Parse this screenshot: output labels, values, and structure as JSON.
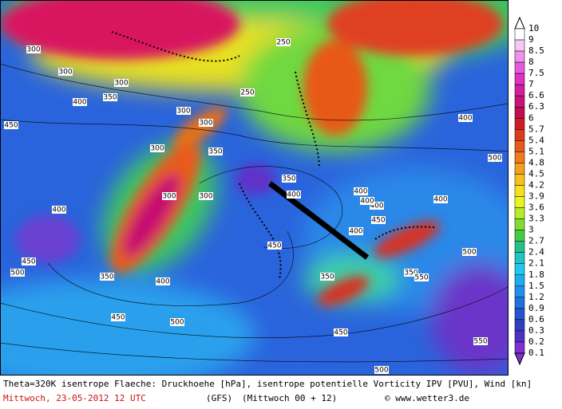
{
  "map": {
    "contour_labels": [
      "300",
      "300",
      "300",
      "350",
      "400",
      "450",
      "250",
      "300",
      "300",
      "300",
      "250",
      "350",
      "300",
      "300",
      "350",
      "400",
      "400",
      "400",
      "450",
      "500",
      "400",
      "450",
      "500",
      "400",
      "350",
      "450",
      "350",
      "400",
      "350",
      "450",
      "450",
      "500",
      "550",
      "550",
      "500",
      "500",
      "400",
      "400",
      "400"
    ]
  },
  "colorbar": {
    "labels": [
      "10",
      "9",
      "8.5",
      "8",
      "7.5",
      "7",
      "6.6",
      "6.3",
      "6",
      "5.7",
      "5.4",
      "5.1",
      "4.8",
      "4.5",
      "4.2",
      "3.9",
      "3.6",
      "3.3",
      "3",
      "2.7",
      "2.4",
      "2.1",
      "1.8",
      "1.5",
      "1.2",
      "0.9",
      "0.6",
      "0.3",
      "0.2",
      "0.1"
    ],
    "colors": [
      "#ffffff",
      "#f4c8f4",
      "#f090ec",
      "#e858e0",
      "#e030c0",
      "#d41c9c",
      "#c81478",
      "#c00c50",
      "#cc1c28",
      "#dc3a1c",
      "#e65a1c",
      "#ee7c1c",
      "#f4a01c",
      "#f8c01c",
      "#f8e01c",
      "#e8f420",
      "#b8ec28",
      "#80dc30",
      "#44cc44",
      "#24c088",
      "#20c4c4",
      "#20c8f0",
      "#20acf0",
      "#2090ec",
      "#2070e0",
      "#2454d0",
      "#3040c0",
      "#5030c4",
      "#8030d0"
    ]
  },
  "footer": {
    "line1": "Theta=320K isentrope Flaeche: Druckhoehe [hPa], isentrope potentielle Vorticity IPV [PVU], Wind [kn]",
    "date": "Mittwoch, 23-05-2012  12 UTC",
    "model": "(GFS)",
    "run": "(Mittwoch 00 + 12)",
    "copyright": "© www.wetter3.de"
  }
}
